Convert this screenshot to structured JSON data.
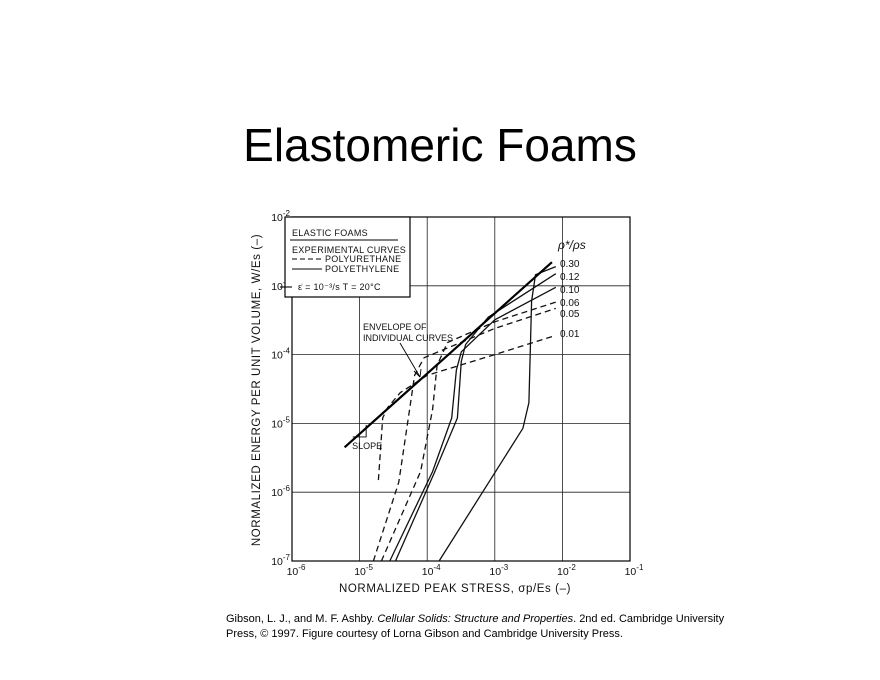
{
  "slide": {
    "title": "Elastomeric Foams",
    "caption": {
      "pre": "Gibson, L. J., and M. F. Ashby. ",
      "italic": "Cellular Solids: Structure and Properties",
      "post": ". 2nd ed. Cambridge University Press, © 1997. Figure courtesy of Lorna Gibson and Cambridge University Press."
    }
  },
  "chart_data": {
    "type": "line",
    "xscale": "log",
    "yscale": "log",
    "xlim": [
      1e-06,
      0.1
    ],
    "ylim": [
      1e-07,
      0.01
    ],
    "grid": true,
    "xlabel": "NORMALIZED PEAK STRESS, σp/Es (–)",
    "ylabel": "NORMALIZED ENERGY PER UNIT VOLUME, W/Es (–)",
    "x_ticks": [
      {
        "value": 1e-06,
        "base": "10",
        "exp": "-6"
      },
      {
        "value": 1e-05,
        "base": "10",
        "exp": "-5"
      },
      {
        "value": 0.0001,
        "base": "10",
        "exp": "-4"
      },
      {
        "value": 0.001,
        "base": "10",
        "exp": "-3"
      },
      {
        "value": 0.01,
        "base": "10",
        "exp": "-2"
      },
      {
        "value": 0.1,
        "base": "10",
        "exp": "-1"
      }
    ],
    "y_ticks": [
      {
        "value": 1e-07,
        "base": "10",
        "exp": "-7"
      },
      {
        "value": 1e-06,
        "base": "10",
        "exp": "-6"
      },
      {
        "value": 1e-05,
        "base": "10",
        "exp": "-5"
      },
      {
        "value": 0.0001,
        "base": "10",
        "exp": "-4"
      },
      {
        "value": 0.001,
        "base": "10",
        "exp": "-3"
      },
      {
        "value": 0.01,
        "base": "10",
        "exp": "-2"
      }
    ],
    "legend": {
      "position": "top-left",
      "title": "ELASTIC FOAMS",
      "subtitle": "EXPERIMENTAL CURVES",
      "entries": [
        {
          "label": "POLYURETHANE",
          "style": "dashed"
        },
        {
          "label": "POLYETHYLENE",
          "style": "solid"
        }
      ],
      "conditions": "ε̇ = 10⁻³/s   T = 20°C"
    },
    "density_header": "ρ*/ρs",
    "envelope": {
      "label_lines": [
        "ENVELOPE OF",
        "INDIVIDUAL CURVES"
      ],
      "slope_label": "SLOPE",
      "points": [
        [
          6e-06,
          4.5e-06
        ],
        [
          0.007,
          0.0022
        ]
      ]
    },
    "series": [
      {
        "name": "0.30",
        "style": "solid",
        "points": [
          [
            0.00015,
            1e-07
          ],
          [
            0.0026,
            8.5e-06
          ],
          [
            0.0032,
            2e-05
          ],
          [
            0.0035,
            0.0006
          ],
          [
            0.004,
            0.00145
          ],
          [
            0.008,
            0.0019
          ]
        ]
      },
      {
        "name": "0.12",
        "style": "solid",
        "points": [
          [
            3.4e-05,
            1e-07
          ],
          [
            0.00013,
            2e-06
          ],
          [
            0.00028,
            1.2e-05
          ],
          [
            0.00032,
            8e-05
          ],
          [
            0.00037,
            0.00014
          ],
          [
            0.0008,
            0.00035
          ],
          [
            0.008,
            0.0015
          ]
        ]
      },
      {
        "name": "0.10",
        "style": "solid",
        "points": [
          [
            2.8e-05,
            1e-07
          ],
          [
            0.00012,
            2e-06
          ],
          [
            0.00023,
            1.2e-05
          ],
          [
            0.00027,
            6e-05
          ],
          [
            0.00032,
            0.00011
          ],
          [
            0.001,
            0.00032
          ],
          [
            0.008,
            0.00095
          ]
        ]
      },
      {
        "name": "0.06",
        "style": "dashed",
        "points": [
          [
            2.1e-05,
            1e-07
          ],
          [
            8e-05,
            2e-06
          ],
          [
            0.00012,
            1.6e-05
          ],
          [
            0.00014,
            7e-05
          ],
          [
            0.0002,
            0.00015
          ],
          [
            0.001,
            0.0003
          ],
          [
            0.008,
            0.00058
          ]
        ]
      },
      {
        "name": "0.05",
        "style": "dashed",
        "points": [
          [
            1.6e-05,
            1e-07
          ],
          [
            3.8e-05,
            1.4e-06
          ],
          [
            5.5e-05,
            1.6e-05
          ],
          [
            6.5e-05,
            5e-05
          ],
          [
            9e-05,
            9e-05
          ],
          [
            0.001,
            0.00024
          ],
          [
            0.008,
            0.00047
          ]
        ]
      },
      {
        "name": "0.01",
        "style": "dashed",
        "points": [
          [
            1.9e-05,
            1.5e-06
          ],
          [
            2.2e-05,
            1.2e-05
          ],
          [
            2.6e-05,
            1.7e-05
          ],
          [
            4e-05,
            2.8e-05
          ],
          [
            0.0001,
            5e-05
          ],
          [
            0.001,
            0.0001
          ],
          [
            0.008,
            0.00019
          ]
        ]
      }
    ]
  }
}
